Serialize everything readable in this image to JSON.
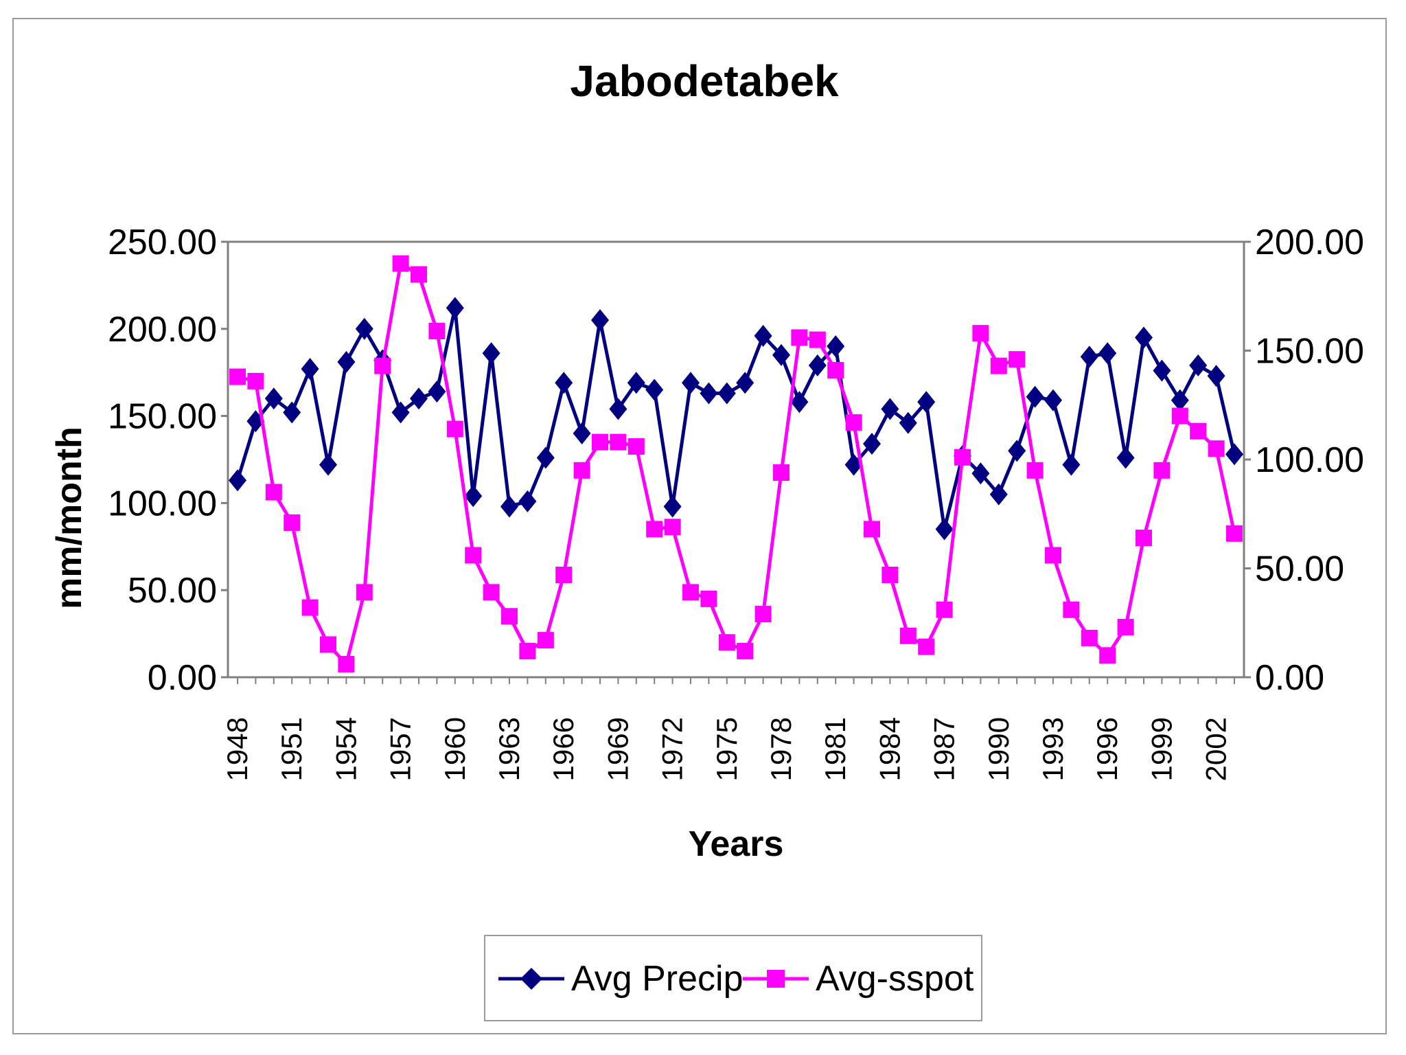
{
  "chart_data": {
    "type": "line",
    "title": "Jabodetabek",
    "xlabel": "Years",
    "ylabel": "mm/month",
    "ylim_left": [
      0,
      250
    ],
    "ylim_right": [
      0,
      200
    ],
    "yticks_left": [
      "0.00",
      "50.00",
      "100.00",
      "150.00",
      "200.00",
      "250.00"
    ],
    "yticks_right": [
      "0.00",
      "50.00",
      "100.00",
      "150.00",
      "200.00"
    ],
    "x": [
      1948,
      1949,
      1950,
      1951,
      1952,
      1953,
      1954,
      1955,
      1956,
      1957,
      1958,
      1959,
      1960,
      1961,
      1962,
      1963,
      1964,
      1965,
      1966,
      1967,
      1968,
      1969,
      1970,
      1971,
      1972,
      1973,
      1974,
      1975,
      1976,
      1977,
      1978,
      1979,
      1980,
      1981,
      1982,
      1983,
      1984,
      1985,
      1986,
      1987,
      1988,
      1989,
      1990,
      1991,
      1992,
      1993,
      1994,
      1995,
      1996,
      1997,
      1998,
      1999,
      2000,
      2001,
      2002,
      2003
    ],
    "xtick_labels": [
      "1948",
      "1951",
      "1954",
      "1957",
      "1960",
      "1963",
      "1966",
      "1969",
      "1972",
      "1975",
      "1978",
      "1981",
      "1984",
      "1987",
      "1990",
      "1993",
      "1996",
      "1999",
      "2002"
    ],
    "series": [
      {
        "name": "Avg Precip",
        "axis": "left",
        "color": "#000080",
        "marker": "diamond",
        "values": [
          113,
          147,
          160,
          152,
          177,
          122,
          181,
          200,
          182,
          152,
          160,
          164,
          212,
          104,
          186,
          98,
          101,
          126,
          169,
          140,
          205,
          154,
          169,
          165,
          98,
          169,
          163,
          163,
          169,
          196,
          185,
          158,
          179,
          190,
          122,
          134,
          154,
          146,
          158,
          85,
          127,
          117,
          105,
          130,
          161,
          159,
          122,
          184,
          186,
          126,
          195,
          176,
          159,
          179,
          173,
          128
        ]
      },
      {
        "name": "Avg-sspot",
        "axis": "right",
        "color": "#ff00ff",
        "marker": "square",
        "values": [
          138,
          136,
          85,
          71,
          32,
          15,
          6,
          39,
          143,
          190,
          185,
          159,
          114,
          56,
          39,
          28,
          12,
          17,
          47,
          95,
          108,
          108,
          106,
          68,
          69,
          39,
          36,
          16,
          12,
          29,
          94,
          156,
          155,
          141,
          117,
          68,
          47,
          19,
          14,
          31,
          101,
          158,
          143,
          146,
          95,
          56,
          31,
          18,
          10,
          23,
          64,
          95,
          120,
          113,
          105,
          66
        ]
      }
    ]
  }
}
